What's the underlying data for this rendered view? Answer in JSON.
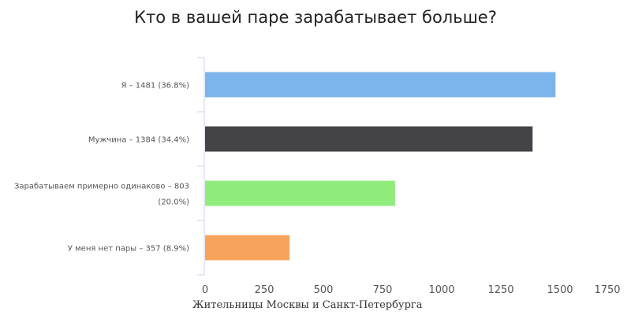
{
  "chart_data": {
    "type": "bar",
    "orientation": "horizontal",
    "title": "Кто в вашей паре зарабатывает больше?",
    "xlabel": "Жительницы Москвы и Санкт-Петербурга",
    "ylabel": "",
    "categories": [
      [
        "Я – 1481 (36.8%)"
      ],
      [
        "Мужчина – 1384 (34.4%)"
      ],
      [
        "Зарабатываем примерно одинаково – 803",
        "(20.0%)"
      ],
      [
        "У меня нет пары – 357 (8.9%)"
      ]
    ],
    "values": [
      1481,
      1384,
      803,
      357
    ],
    "colors": [
      "#7cb5ec",
      "#434348",
      "#90ed7d",
      "#f7a35c"
    ],
    "xlim": [
      0,
      1750
    ],
    "xticks": [
      "0",
      "250",
      "500",
      "750",
      "1000",
      "1250",
      "1500",
      "1750"
    ],
    "grid": false,
    "legend": "none"
  }
}
